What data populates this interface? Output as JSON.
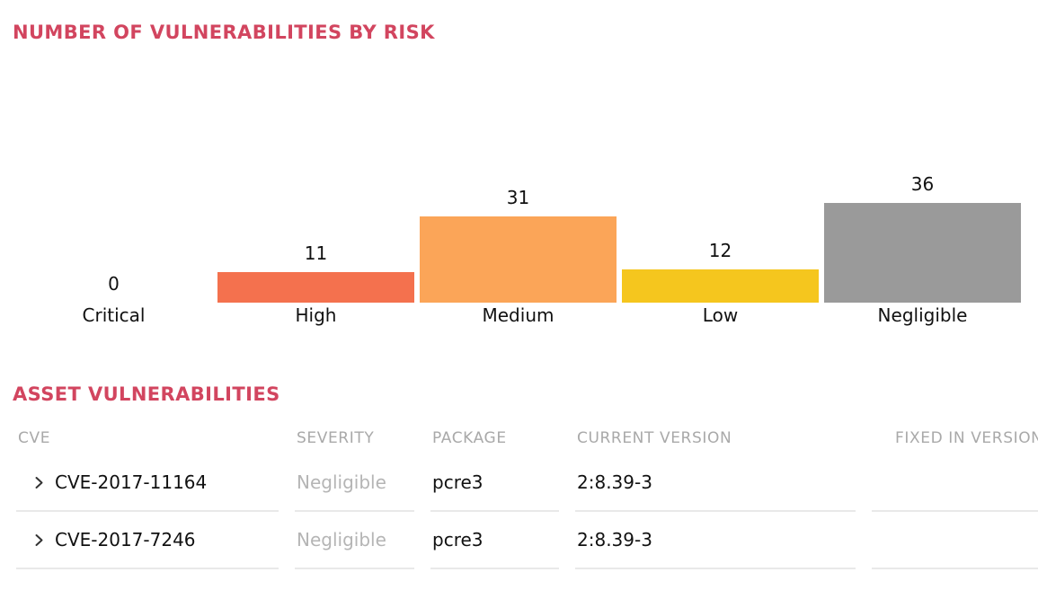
{
  "colors": {
    "accent_title": "#d2455f",
    "bar_high": "#f4714e",
    "bar_medium": "#fba558",
    "bar_low": "#f5c61e",
    "bar_negligible": "#9a9a9a",
    "table_header_text": "#a9a9a9",
    "muted_severity_text": "#b5b5b5",
    "row_border": "#e9e9e9"
  },
  "chart_title": "NUMBER OF VULNERABILITIES BY RISK",
  "chart_data": {
    "type": "bar",
    "title": "NUMBER OF VULNERABILITIES BY RISK",
    "categories": [
      "Critical",
      "High",
      "Medium",
      "Low",
      "Negligible"
    ],
    "values": [
      0,
      11,
      31,
      12,
      36
    ],
    "colors": [
      null,
      "#f4714e",
      "#fba558",
      "#f5c61e",
      "#9a9a9a"
    ],
    "value_labels": [
      0,
      11,
      31,
      12,
      36
    ],
    "xlabel": "",
    "ylabel": "",
    "ylim": [
      0,
      36
    ],
    "grid": false,
    "legend": "none",
    "bar_orientation": "vertical"
  },
  "table_section": {
    "title": "ASSET VULNERABILITIES",
    "columns": {
      "cve": "CVE",
      "severity": "SEVERITY",
      "package": "PACKAGE",
      "current_version": "CURRENT VERSION",
      "fixed_in_version": "FIXED IN VERSION"
    },
    "rows": [
      {
        "cve": "CVE-2017-11164",
        "severity": "Negligible",
        "package": "pcre3",
        "current_version": "2:8.39-3",
        "fixed_in_version": ""
      },
      {
        "cve": "CVE-2017-7246",
        "severity": "Negligible",
        "package": "pcre3",
        "current_version": "2:8.39-3",
        "fixed_in_version": ""
      }
    ]
  }
}
